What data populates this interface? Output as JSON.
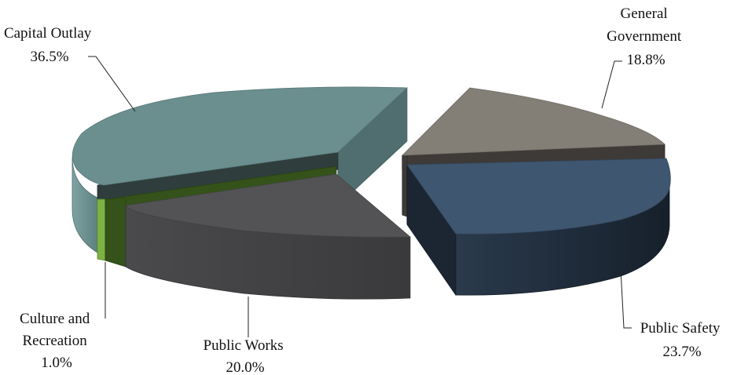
{
  "chart_data": {
    "type": "pie",
    "title": "",
    "three_d": true,
    "exploded": true,
    "legend": "none",
    "slices": [
      {
        "name": "Capital Outlay",
        "value": 36.5,
        "label": "36.5%",
        "label_lines": [
          "Capital Outlay",
          "36.5%"
        ],
        "top_color": "#6b8e8f",
        "side_color": "#50716f"
      },
      {
        "name": "General Government",
        "value": 18.8,
        "label": "18.8%",
        "label_lines": [
          "General",
          "Government",
          "18.8%"
        ],
        "top_color": "#837f76",
        "side_color": "#3d3a37"
      },
      {
        "name": "Public Safety",
        "value": 23.7,
        "label": "23.7%",
        "label_lines": [
          "Public Safety",
          "23.7%"
        ],
        "top_color": "#3f5670",
        "side_color": "#1f2a38"
      },
      {
        "name": "Public Works",
        "value": 20.0,
        "label": "20.0%",
        "label_lines": [
          "Public Works",
          "20.0%"
        ],
        "top_color": "#535356",
        "side_color": "#444446"
      },
      {
        "name": "Culture and Recreation",
        "value": 1.0,
        "label": "1.0%",
        "label_lines": [
          "Culture and",
          "Recreation",
          "1.0%"
        ],
        "top_color": "#34521a",
        "side_color": "#7cb342"
      }
    ]
  }
}
